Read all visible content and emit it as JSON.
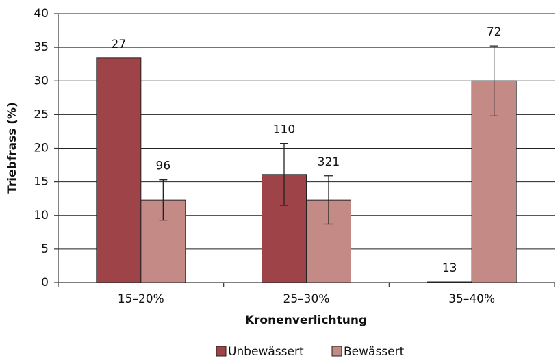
{
  "chart_data": {
    "type": "bar",
    "x_label": "Kronenverlichtung",
    "y_label": "Triebfrass (%)",
    "categories": [
      "15–20%",
      "25–30%",
      "35–40%"
    ],
    "series": [
      {
        "name": "Unbewässert",
        "color": "#9e4449",
        "values": [
          33.4,
          16.1,
          0.1
        ],
        "errors": [
          null,
          4.6,
          null
        ],
        "n": [
          27,
          110,
          13
        ]
      },
      {
        "name": "Bewässert",
        "color": "#c38a86",
        "values": [
          12.3,
          12.3,
          30
        ],
        "errors": [
          3.0,
          3.6,
          5.2
        ],
        "n": [
          96,
          321,
          72
        ]
      }
    ],
    "ylim": [
      0,
      40
    ],
    "yticks": [
      0,
      5,
      10,
      15,
      20,
      25,
      30,
      35,
      40
    ],
    "grid": true,
    "legend": "bottom"
  }
}
